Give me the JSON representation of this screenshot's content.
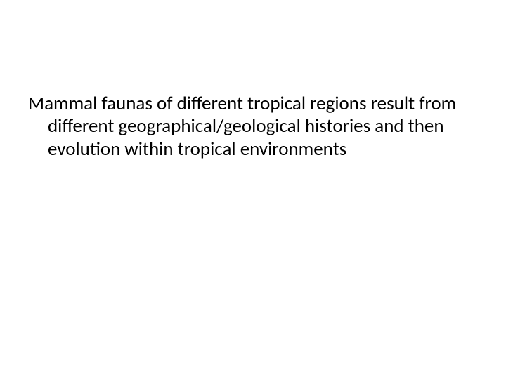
{
  "slide": {
    "text": "Mammal faunas of different tropical regions result from different geographical/geological histories and then evolution within tropical environments",
    "font_size": 27,
    "font_family": "Calibri",
    "text_color": "#000000",
    "background_color": "#ffffff",
    "line_height": 1.2
  }
}
